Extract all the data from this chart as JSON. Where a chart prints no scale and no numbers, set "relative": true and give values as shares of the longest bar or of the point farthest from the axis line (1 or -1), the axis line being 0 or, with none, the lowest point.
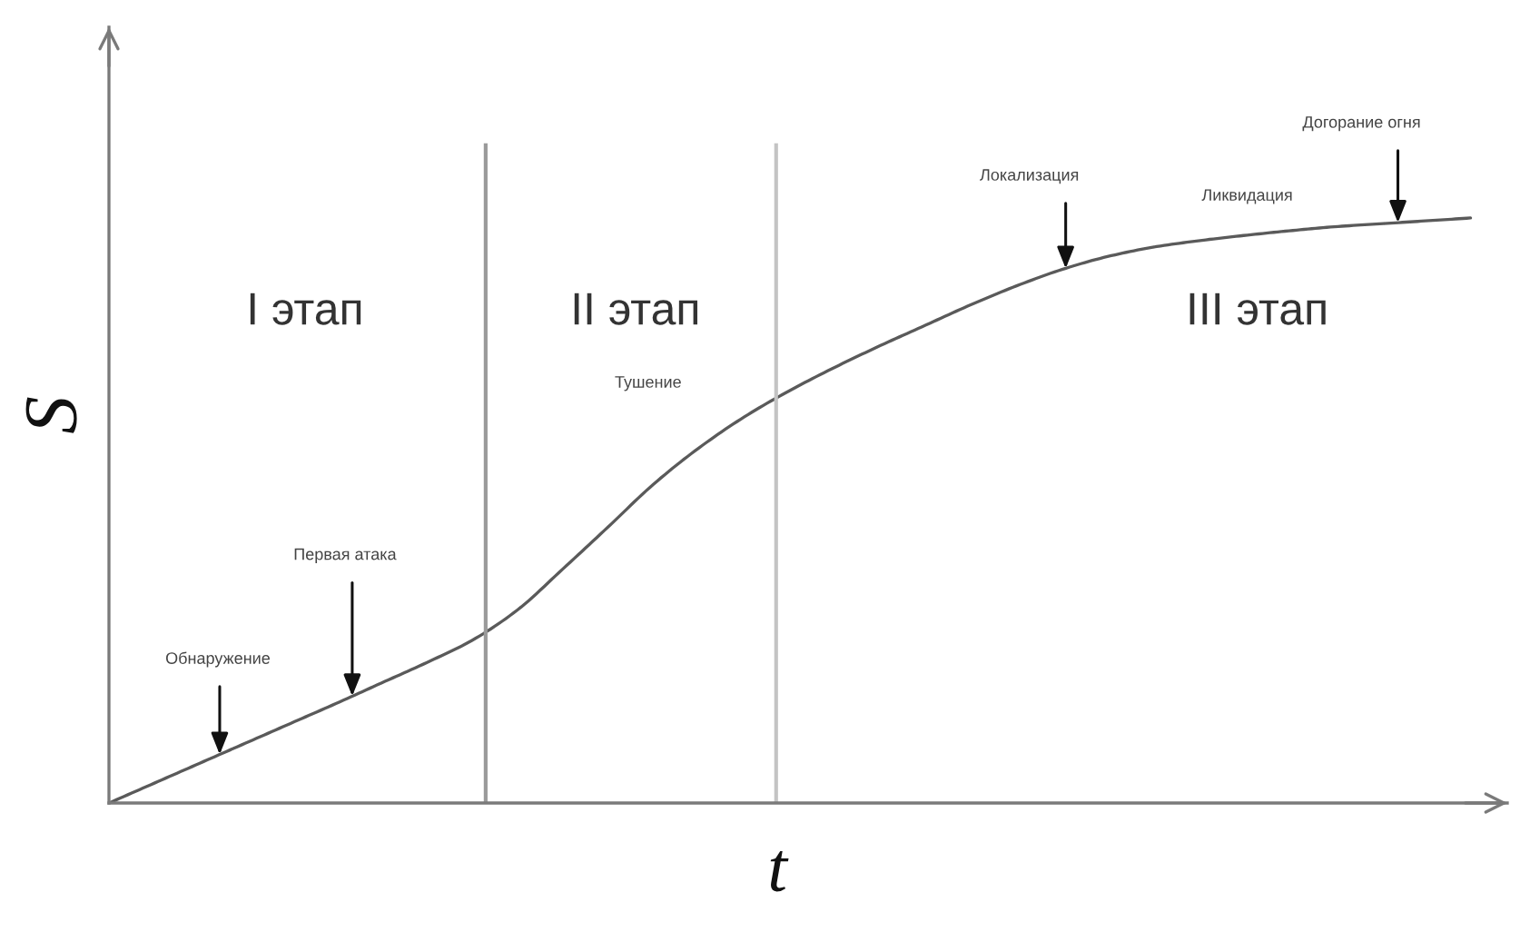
{
  "chart_data": {
    "type": "line",
    "relative": true,
    "xlabel": "t",
    "ylabel": "S",
    "categories": [
      null,
      null,
      null,
      null,
      null,
      null,
      null,
      null,
      null,
      null,
      null,
      null,
      null,
      null,
      null,
      null,
      null,
      null,
      null,
      null,
      null,
      null,
      null,
      null,
      null,
      null,
      null,
      null,
      null,
      null,
      null
    ],
    "values": [
      0,
      0.034,
      0.068,
      0.102,
      0.136,
      0.17,
      0.205,
      0.24,
      0.278,
      0.33,
      0.4,
      0.472,
      0.545,
      0.607,
      0.66,
      0.705,
      0.745,
      0.782,
      0.817,
      0.852,
      0.884,
      0.912,
      0.934,
      0.95,
      0.961,
      0.97,
      0.978,
      0.985,
      0.99,
      0.995,
      1
    ],
    "color": "#5a5a5a",
    "annotations": [
      "I этап",
      "II этап",
      "III этап",
      "Обнаружение",
      "Первая атака",
      "Тушение",
      "Локализация",
      "Ликвидация",
      "Догорание огня"
    ]
  }
}
